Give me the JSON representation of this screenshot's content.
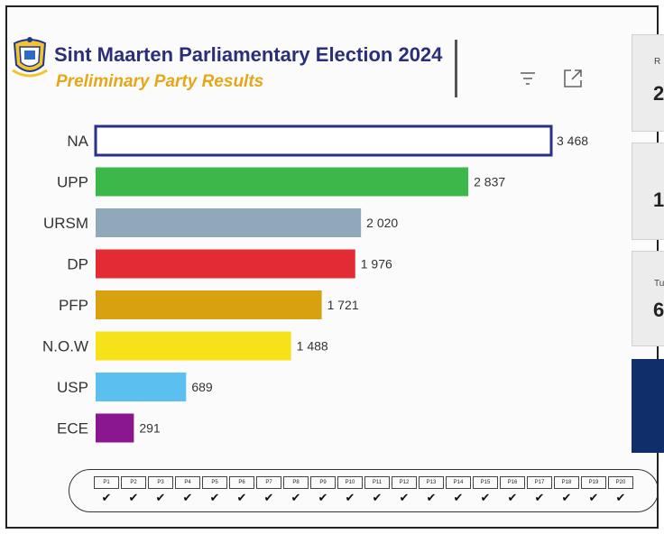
{
  "header": {
    "title": "Sint Maarten Parliamentary Election 2024",
    "subtitle": "Preliminary Party Results"
  },
  "icons": {
    "logo": "coat-of-arms-icon",
    "filter": "filter-icon",
    "expand": "expand-icon"
  },
  "side_cards": [
    {
      "label": "R",
      "value": "2"
    },
    {
      "label": "",
      "value": "1"
    },
    {
      "label": "Tu",
      "value": "6"
    },
    {
      "label": "",
      "value": ""
    }
  ],
  "chart_data": {
    "type": "bar",
    "orientation": "horizontal",
    "title": "Sint Maarten Parliamentary Election 2024",
    "subtitle": "Preliminary Party Results",
    "categories": [
      "NA",
      "UPP",
      "URSM",
      "DP",
      "PFP",
      "N.O.W",
      "USP",
      "ECE"
    ],
    "values": [
      3468,
      2837,
      2020,
      1976,
      1721,
      1488,
      689,
      291
    ],
    "value_labels": [
      "3 468",
      "2 837",
      "2 020",
      "1 976",
      "1 721",
      "1 488",
      "689",
      "291"
    ],
    "colors": [
      "#ffffff",
      "#3cb84a",
      "#8fa9ba",
      "#e32b35",
      "#d8a10f",
      "#f7e21a",
      "#5bc0f0",
      "#8a1690"
    ],
    "highlight": {
      "category": "NA",
      "outline": "#2a2f8a"
    },
    "xlim": [
      0,
      3468
    ],
    "grid": false,
    "legend": "none"
  },
  "polling_stations": {
    "codes": [
      "P1",
      "P2",
      "P3",
      "P4",
      "P5",
      "P6",
      "P7",
      "P8",
      "P9",
      "P10",
      "P11",
      "P12",
      "P13",
      "P14",
      "P15",
      "P16",
      "P17",
      "P18",
      "P19",
      "P20"
    ],
    "mark": "✔"
  }
}
